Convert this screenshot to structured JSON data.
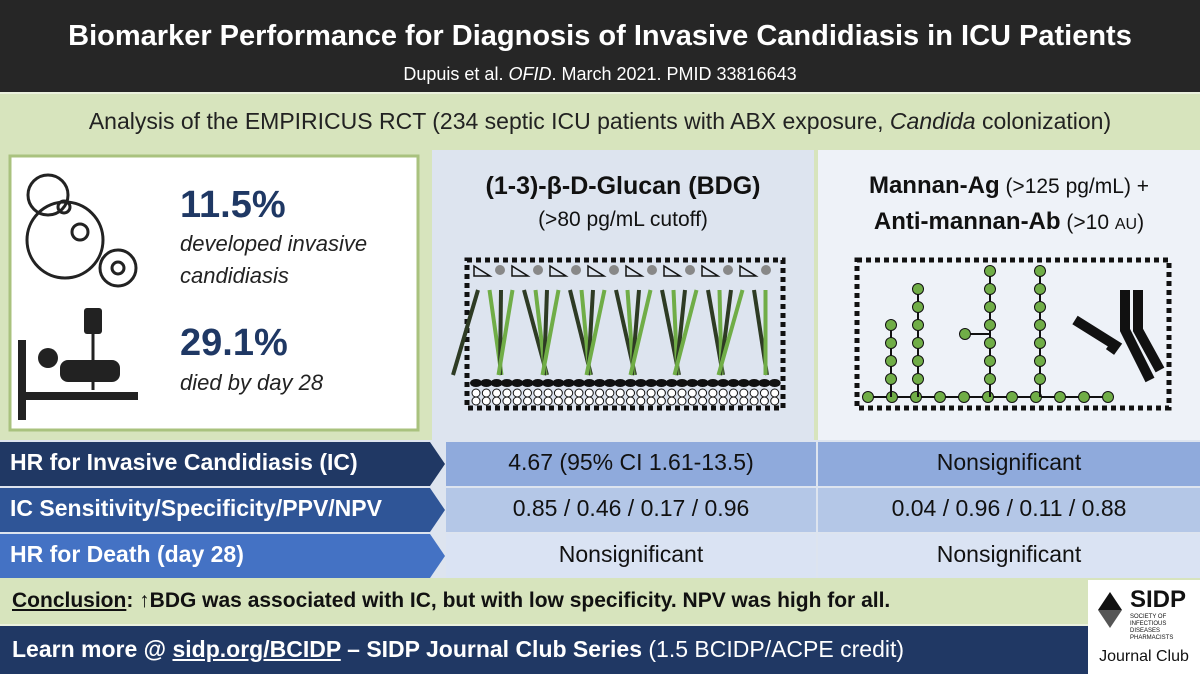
{
  "header": {
    "title": "Biomarker Performance for Diagnosis of Invasive Candidiasis in ICU Patients",
    "citation": {
      "authors": "Dupuis et al. ",
      "journal": "OFID",
      "rest": ". March 2021. PMID 33816643"
    }
  },
  "banner": {
    "before": "Analysis of the EMPIRICUS RCT (234 septic ICU patients with ABX exposure, ",
    "italic": "Candida",
    "after": " colonization)"
  },
  "stats": [
    {
      "value": "11.5%",
      "label": "developed invasive candidiasis"
    },
    {
      "value": "29.1%",
      "label": "died by day 28"
    }
  ],
  "columns": [
    {
      "name": "(1-3)-β-D-Glucan (BDG)",
      "detail": "(>80 pg/mL cutoff)"
    },
    {
      "name1": "Mannan-Ag",
      "detail1": " (>125 pg/mL) +",
      "name2": "Anti-mannan-Ab",
      "detail2": " (>10 ",
      "unit": "AU",
      "close": ")"
    }
  ],
  "table": {
    "rows": [
      [
        "HR for Invasive Candidiasis (IC)",
        "4.67 (95% CI 1.61-13.5)",
        "Nonsignificant"
      ],
      [
        "IC Sensitivity/Specificity/PPV/NPV",
        "0.85 / 0.46 / 0.17 / 0.96",
        "0.04 / 0.96 / 0.11 / 0.88"
      ],
      [
        "HR for Death (day 28)",
        "Nonsignificant",
        "Nonsignificant"
      ]
    ]
  },
  "conclusion": {
    "label": "Conclusion",
    "text": ": ↑BDG was associated with IC, but with low specificity. NPV was high for all."
  },
  "footer": {
    "before": "Learn more @ ",
    "link": "sidp.org/BCIDP",
    "middle": " – SIDP Journal Club Series",
    "credit": " (1.5 BCIDP/ACPE credit)"
  },
  "logo": {
    "name": "SIDP",
    "society": "SOCIETY OF INFECTIOUS DISEASES PHARMACISTS",
    "series": "Journal Club"
  }
}
